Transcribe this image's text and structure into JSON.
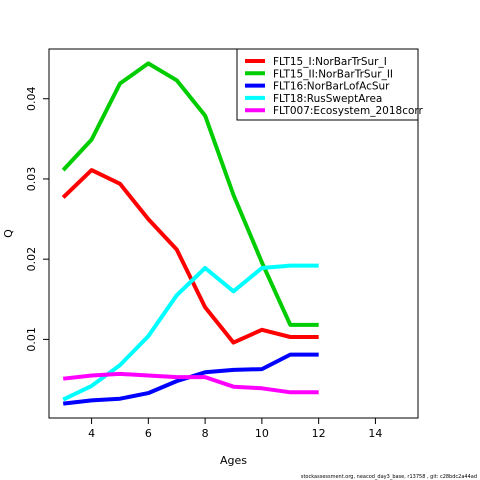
{
  "chart_data": {
    "type": "line",
    "xlabel": "Ages",
    "ylabel": "Q",
    "xlim": [
      2.5,
      15.5
    ],
    "ylim": [
      0.0002,
      0.0462
    ],
    "xticks": [
      4,
      6,
      8,
      10,
      12,
      14
    ],
    "yticks": [
      0.01,
      0.02,
      0.03,
      0.04
    ],
    "legend_position": "top-right",
    "grid": false,
    "series": [
      {
        "name": "FLT15_I:NorBarTrSur_I",
        "color": "#ff0000",
        "x": [
          3,
          4,
          5,
          6,
          7,
          8,
          9,
          10,
          11,
          12
        ],
        "y": [
          0.0277,
          0.0311,
          0.0294,
          0.025,
          0.0212,
          0.014,
          0.0096,
          0.0112,
          0.0103,
          0.0103
        ]
      },
      {
        "name": "FLT15_II:NorBarTrSur_II",
        "color": "#00cd00",
        "x": [
          3,
          4,
          5,
          6,
          7,
          8,
          9,
          10,
          11,
          12
        ],
        "y": [
          0.0311,
          0.0349,
          0.0419,
          0.0444,
          0.0423,
          0.0379,
          0.028,
          0.0196,
          0.0118,
          0.0118
        ]
      },
      {
        "name": "FLT16:NorBarLofAcSur",
        "color": "#0000ff",
        "x": [
          3,
          4,
          5,
          6,
          7,
          8,
          9,
          10,
          11,
          12
        ],
        "y": [
          0.002,
          0.0024,
          0.0026,
          0.0033,
          0.0048,
          0.0059,
          0.0062,
          0.0063,
          0.0081,
          0.0081
        ]
      },
      {
        "name": "FLT18:RusSweptArea",
        "color": "#00ffff",
        "x": [
          3,
          4,
          5,
          6,
          7,
          8,
          9,
          10,
          11,
          12
        ],
        "y": [
          0.0025,
          0.0042,
          0.0068,
          0.0104,
          0.0155,
          0.0189,
          0.016,
          0.0189,
          0.0192,
          0.0192
        ]
      },
      {
        "name": "FLT007:Ecosystem_2018corr",
        "color": "#ff00ff",
        "x": [
          3,
          4,
          5,
          6,
          7,
          8,
          9,
          10,
          11,
          12
        ],
        "y": [
          0.0051,
          0.0055,
          0.0057,
          0.0055,
          0.0053,
          0.0053,
          0.0041,
          0.0039,
          0.0034,
          0.0034
        ]
      }
    ]
  },
  "footer": "stockassessment.org, neacod_day3_base, r13758 , git: c28bdc2a44ad"
}
